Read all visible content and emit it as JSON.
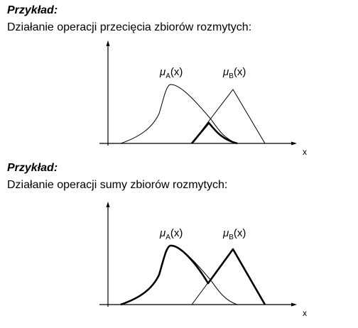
{
  "examples": [
    {
      "heading": "Przykład:",
      "description": "Działanie operacji przecięcia zbiorów rozmytych:",
      "operation": "intersection",
      "set_a_label": {
        "mu": "μ",
        "sub": "A",
        "arg": "(x)"
      },
      "set_b_label": {
        "mu": "μ",
        "sub": "B",
        "arg": "(x)"
      },
      "axis_label": "x"
    },
    {
      "heading": "Przykład:",
      "description": "Działanie operacji sumy zbiorów rozmytych:",
      "operation": "union",
      "set_a_label": {
        "mu": "μ",
        "sub": "A",
        "arg": "(x)"
      },
      "set_b_label": {
        "mu": "μ",
        "sub": "B",
        "arg": "(x)"
      },
      "axis_label": "x"
    }
  ]
}
